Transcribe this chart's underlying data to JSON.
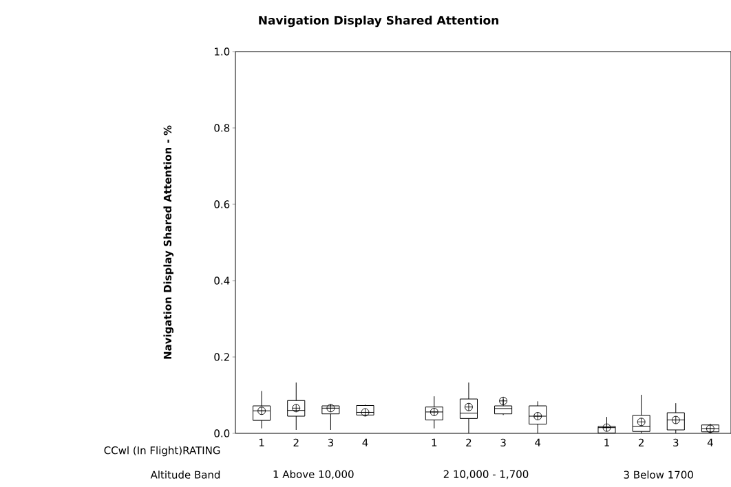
{
  "chart_data": {
    "type": "box",
    "title": "Navigation Display Shared Attention",
    "ylabel": "Navigation Display Shared Attention - %",
    "categories": [
      "1",
      "2",
      "3",
      "4",
      null,
      "1",
      "2",
      "3",
      "4",
      null,
      "1",
      "2",
      "3",
      "4"
    ],
    "color": "#000000",
    "boxes": [
      {
        "low": 0.013,
        "q1": 0.034,
        "median": 0.059,
        "q3": 0.072,
        "high": 0.111,
        "mean": 0.059
      },
      {
        "low": 0.009,
        "q1": 0.045,
        "median": 0.06,
        "q3": 0.086,
        "high": 0.133,
        "mean": 0.066
      },
      {
        "low": 0.009,
        "q1": 0.051,
        "median": 0.066,
        "q3": 0.072,
        "high": 0.075,
        "mean": 0.066
      },
      {
        "low": 0.045,
        "q1": 0.048,
        "median": 0.055,
        "q3": 0.073,
        "high": 0.075,
        "mean": 0.055
      },
      null,
      {
        "low": 0.013,
        "q1": 0.035,
        "median": 0.056,
        "q3": 0.069,
        "high": 0.097,
        "mean": 0.056
      },
      {
        "low": 0.0,
        "q1": 0.039,
        "median": 0.053,
        "q3": 0.09,
        "high": 0.133,
        "mean": 0.069
      },
      {
        "low": 0.048,
        "q1": 0.051,
        "median": 0.065,
        "q3": 0.072,
        "high": 0.09,
        "mean": 0.085
      },
      {
        "low": 0.0,
        "q1": 0.024,
        "median": 0.045,
        "q3": 0.072,
        "high": 0.084,
        "mean": 0.045
      },
      null,
      {
        "low": 0.0,
        "q1": 0.001,
        "median": 0.015,
        "q3": 0.018,
        "high": 0.043,
        "mean": 0.015
      },
      {
        "low": 0.0,
        "q1": 0.005,
        "median": 0.018,
        "q3": 0.047,
        "high": 0.101,
        "mean": 0.03
      },
      {
        "low": 0.0,
        "q1": 0.009,
        "median": 0.035,
        "q3": 0.054,
        "high": 0.079,
        "mean": 0.035
      },
      {
        "low": 0.0,
        "q1": 0.004,
        "median": 0.012,
        "q3": 0.022,
        "high": 0.025,
        "mean": 0.012
      }
    ],
    "ylim": [
      0,
      1.0
    ],
    "yticks": [
      {
        "value": 0,
        "label": "0.0"
      },
      {
        "value": 0.2,
        "label": "0.2"
      },
      {
        "value": 0.4,
        "label": "0.4"
      },
      {
        "value": 0.6,
        "label": "0.6"
      },
      {
        "value": 0.8,
        "label": "0.8"
      },
      {
        "value": 1.0,
        "label": "1.0"
      }
    ],
    "annotations": [
      "CCwl (In Flight)RATING",
      "Altitude Band",
      "1 Above 10,000",
      "2 10,000 - 1,700",
      "3 Below 1700"
    ]
  }
}
